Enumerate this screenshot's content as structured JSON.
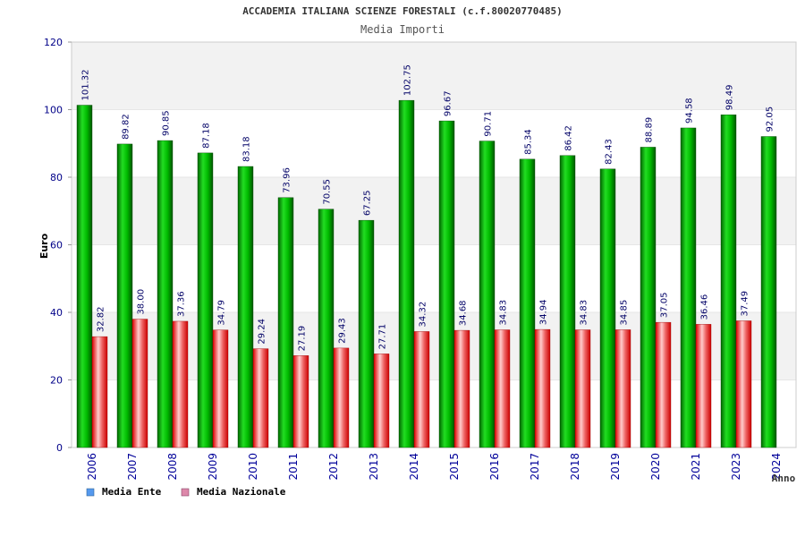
{
  "chart_data": {
    "type": "bar",
    "title": "ACCADEMIA ITALIANA SCIENZE FORESTALI (c.f.80020770485)",
    "subtitle": "Media Importi",
    "xlabel": "Anno",
    "ylabel": "Euro",
    "ylim": [
      0,
      120
    ],
    "yticks": [
      "0",
      "20",
      "40",
      "60",
      "80",
      "100",
      "120"
    ],
    "grid": true,
    "legend_position": "bottom-left",
    "categories": [
      "2006",
      "2007",
      "2008",
      "2009",
      "2010",
      "2011",
      "2012",
      "2013",
      "2014",
      "2015",
      "2016",
      "2017",
      "2018",
      "2019",
      "2020",
      "2021",
      "2023",
      "2024"
    ],
    "series": [
      {
        "name": "Media Ente",
        "values": [
          101.32,
          89.82,
          90.85,
          87.18,
          83.18,
          73.96,
          70.55,
          67.25,
          102.75,
          96.67,
          90.71,
          85.34,
          86.42,
          82.43,
          88.89,
          94.58,
          98.49,
          92.05
        ],
        "labels": [
          "101.32",
          "89.82",
          "90.85",
          "87.18",
          "83.18",
          "73.96",
          "70.55",
          "67.25",
          "102.75",
          "96.67",
          "90.71",
          "85.34",
          "86.42",
          "82.43",
          "88.89",
          "94.58",
          "98.49",
          "92.05"
        ],
        "color": "#00aa00",
        "legend_color": "#5599ee"
      },
      {
        "name": "Media Nazionale",
        "values": [
          32.82,
          38.0,
          37.36,
          34.79,
          29.24,
          27.19,
          29.43,
          27.71,
          34.32,
          34.68,
          34.83,
          34.94,
          34.83,
          34.85,
          37.05,
          36.46,
          37.49,
          null
        ],
        "labels": [
          "32.82",
          "38.00",
          "37.36",
          "34.79",
          "29.24",
          "27.19",
          "29.43",
          "27.71",
          "34.32",
          "34.68",
          "34.83",
          "34.94",
          "34.83",
          "34.85",
          "37.05",
          "36.46",
          "37.49",
          ""
        ],
        "color": "#ee2222",
        "legend_color": "#dd88aa"
      }
    ]
  }
}
